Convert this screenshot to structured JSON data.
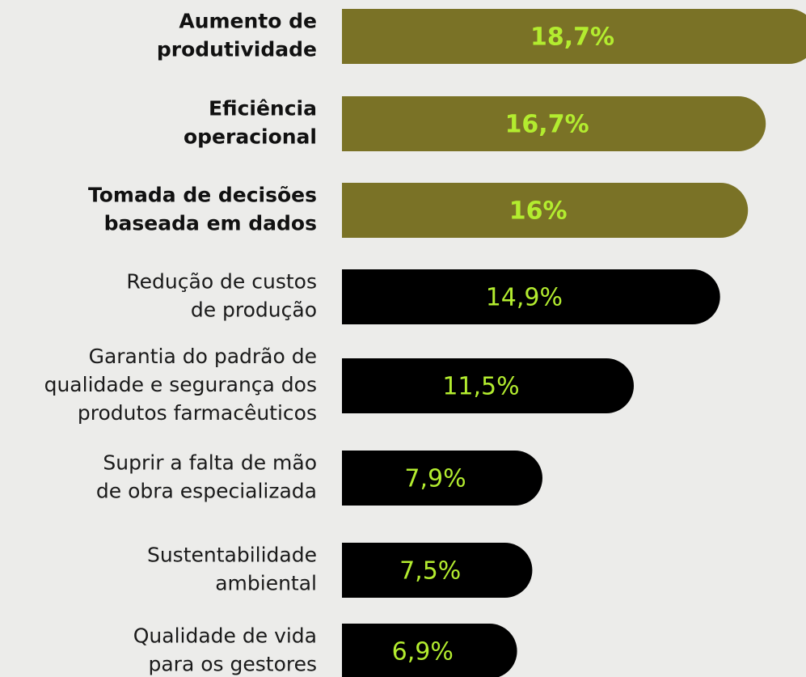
{
  "chart_data": {
    "type": "bar",
    "orientation": "horizontal",
    "categories": [
      [
        "Aumento de",
        "produtividade"
      ],
      [
        "Eficiência",
        "operacional"
      ],
      [
        "Tomada de decisões",
        "baseada em dados"
      ],
      [
        "Redução de custos",
        "de produção"
      ],
      [
        "Garantia do padrão de",
        "qualidade e segurança dos",
        "produtos farmacêuticos"
      ],
      [
        "Suprir a falta de mão",
        "de obra especializada"
      ],
      [
        "Sustentabilidade",
        "ambiental"
      ],
      [
        "Qualidade de vida",
        "para os gestores"
      ]
    ],
    "values": [
      18.7,
      16.7,
      16,
      14.9,
      11.5,
      7.9,
      7.5,
      6.9
    ],
    "value_labels": [
      "18,7%",
      "16,7%",
      "16%",
      "14,9%",
      "11,5%",
      "7,9%",
      "7,5%",
      "6,9%"
    ],
    "colors": [
      "#7a7226",
      "#7a7226",
      "#7a7226",
      "#000000",
      "#000000",
      "#000000",
      "#000000",
      "#000000"
    ],
    "label_color": "#b3ec2f"
  }
}
